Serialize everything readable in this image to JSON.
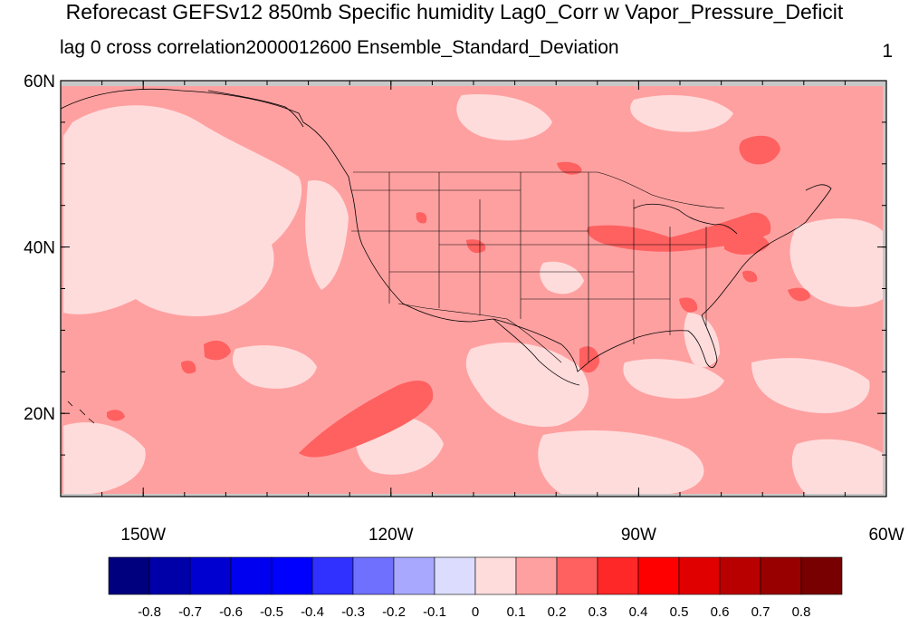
{
  "title": "Reforecast GEFSv12 850mb Specific humidity Lag0_Corr w Vapor_Pressure_Deficit",
  "subtitle_left": "lag 0 cross correlation2000012600 Ensemble_Standard_Deviation",
  "subtitle_right": "1",
  "map": {
    "lon_range": [
      -160,
      -60
    ],
    "lat_range": [
      10,
      60
    ],
    "lat_ticks": [
      {
        "value": 60,
        "label": "60N"
      },
      {
        "value": 40,
        "label": "40N"
      },
      {
        "value": 20,
        "label": "20N"
      }
    ],
    "lon_ticks": [
      {
        "value": -150,
        "label": "150W"
      },
      {
        "value": -120,
        "label": "120W"
      },
      {
        "value": -90,
        "label": "90W"
      },
      {
        "value": -60,
        "label": "60W"
      }
    ],
    "missing_color": "#c8c8c8",
    "background_fill": "#ffa0a0"
  },
  "colorbar": {
    "colors": [
      "#00007f",
      "#0000a8",
      "#0000d0",
      "#0000f0",
      "#0000ff",
      "#3030ff",
      "#7070ff",
      "#a8a8ff",
      "#dcdcff",
      "#ffdcdc",
      "#ffa0a0",
      "#ff6060",
      "#ff2828",
      "#ff0000",
      "#e00000",
      "#b80000",
      "#980000",
      "#780000"
    ],
    "labels": [
      "-0.8",
      "-0.7",
      "-0.6",
      "-0.5",
      "-0.4",
      "-0.3",
      "-0.2",
      "-0.1",
      "0",
      "0.1",
      "0.2",
      "0.3",
      "0.4",
      "0.5",
      "0.6",
      "0.7",
      "0.8"
    ]
  }
}
